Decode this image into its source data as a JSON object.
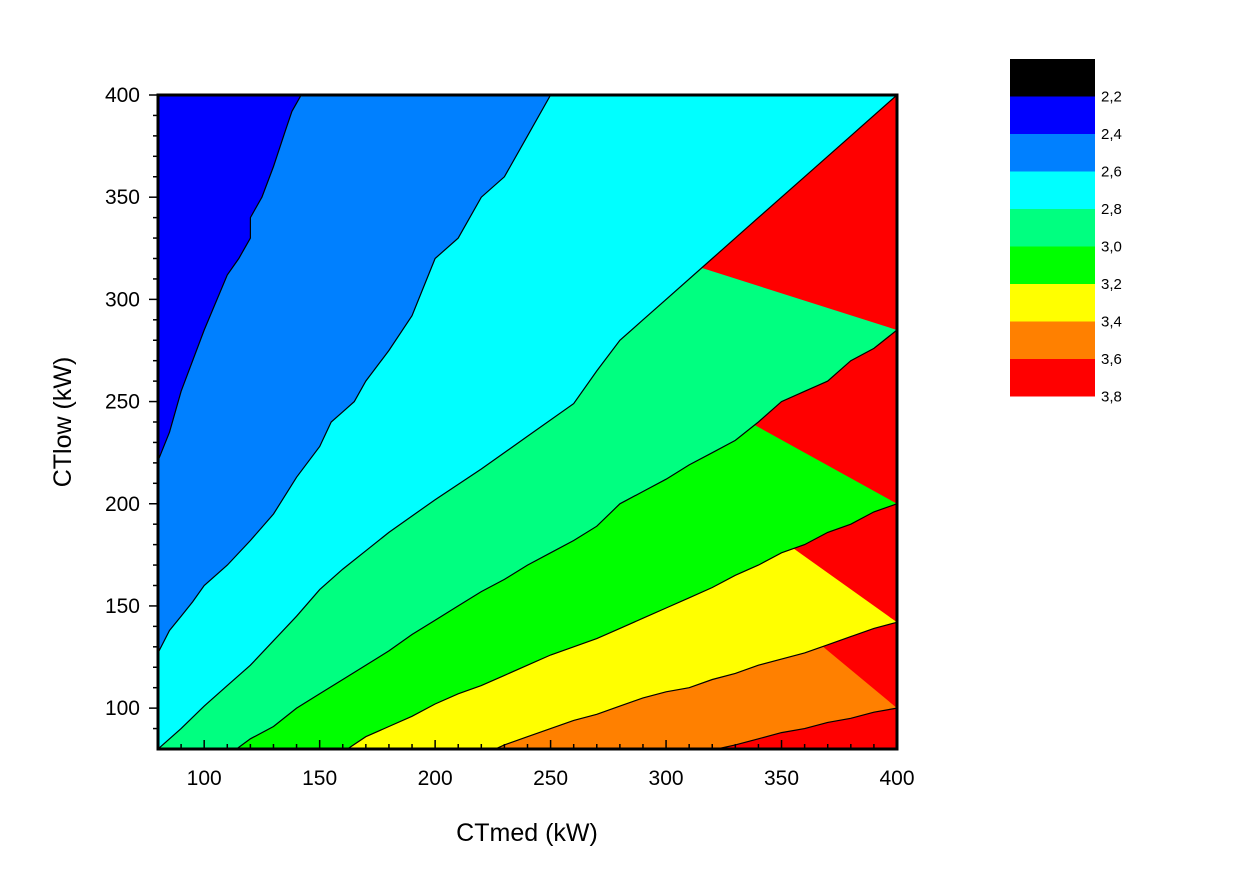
{
  "chart_data": {
    "type": "contour",
    "xlabel": "CTmed (kW)",
    "ylabel": "CTlow (kW)",
    "xlim": [
      80,
      400
    ],
    "ylim": [
      80,
      400
    ],
    "x_ticks": [
      100,
      150,
      200,
      250,
      300,
      350,
      400
    ],
    "y_ticks": [
      100,
      150,
      200,
      250,
      300,
      350,
      400
    ],
    "x_tick_labels": [
      "100",
      "150",
      "200",
      "250",
      "300",
      "350",
      "400"
    ],
    "y_tick_labels": [
      "100",
      "150",
      "200",
      "250",
      "300",
      "350",
      "400"
    ],
    "grid": false,
    "legend_position": "right",
    "levels": [
      {
        "label": "",
        "color": "#000000"
      },
      {
        "label": "2,2",
        "color": "#0000ff"
      },
      {
        "label": "2,4",
        "color": "#0080ff"
      },
      {
        "label": "2,6",
        "color": "#00ffff"
      },
      {
        "label": "2,8",
        "color": "#00ff80"
      },
      {
        "label": "3,0",
        "color": "#00ff00"
      },
      {
        "label": "3,2",
        "color": "#ffff00"
      },
      {
        "label": "3,4",
        "color": "#ff8000"
      },
      {
        "label": "3,6",
        "color": "#ff0000"
      },
      {
        "label": "3,8",
        "color": ""
      }
    ],
    "contours": [
      {
        "level": "2,2/2,4",
        "points": [
          [
            80,
            221
          ],
          [
            85,
            235
          ],
          [
            90,
            255
          ],
          [
            100,
            285
          ],
          [
            110,
            312
          ],
          [
            115,
            320
          ],
          [
            120,
            330
          ],
          [
            120,
            340
          ],
          [
            125,
            350
          ],
          [
            130,
            365
          ],
          [
            135,
            382
          ],
          [
            138,
            392
          ],
          [
            142,
            400
          ]
        ]
      },
      {
        "level": "2,4/2,6",
        "points": [
          [
            80,
            127
          ],
          [
            85,
            138
          ],
          [
            90,
            145
          ],
          [
            95,
            152
          ],
          [
            100,
            160
          ],
          [
            110,
            170
          ],
          [
            120,
            182
          ],
          [
            130,
            195
          ],
          [
            140,
            213
          ],
          [
            150,
            228
          ],
          [
            155,
            240
          ],
          [
            160,
            245
          ],
          [
            165,
            250
          ],
          [
            170,
            260
          ],
          [
            180,
            275
          ],
          [
            190,
            292
          ],
          [
            200,
            320
          ],
          [
            210,
            330
          ],
          [
            220,
            350
          ],
          [
            230,
            360
          ],
          [
            240,
            380
          ],
          [
            250,
            400
          ]
        ]
      },
      {
        "level": "2,6/2,8",
        "points": [
          [
            80,
            80
          ],
          [
            90,
            90
          ],
          [
            100,
            101
          ],
          [
            110,
            111
          ],
          [
            120,
            121
          ],
          [
            130,
            133
          ],
          [
            140,
            145
          ],
          [
            150,
            158
          ],
          [
            160,
            168
          ],
          [
            170,
            177
          ],
          [
            180,
            186
          ],
          [
            200,
            202
          ],
          [
            220,
            217
          ],
          [
            240,
            233
          ],
          [
            260,
            249
          ],
          [
            270,
            265
          ],
          [
            280,
            280
          ],
          [
            290,
            290
          ],
          [
            300,
            300
          ],
          [
            320,
            320
          ],
          [
            340,
            340
          ],
          [
            360,
            360
          ],
          [
            380,
            380
          ],
          [
            400,
            400
          ]
        ]
      },
      {
        "level": "2,8/3,0",
        "points": [
          [
            114,
            80
          ],
          [
            120,
            85
          ],
          [
            130,
            91
          ],
          [
            140,
            100
          ],
          [
            150,
            107
          ],
          [
            160,
            114
          ],
          [
            170,
            121
          ],
          [
            180,
            128
          ],
          [
            190,
            136
          ],
          [
            200,
            143
          ],
          [
            210,
            150
          ],
          [
            220,
            157
          ],
          [
            230,
            163
          ],
          [
            240,
            170
          ],
          [
            250,
            176
          ],
          [
            260,
            182
          ],
          [
            270,
            189
          ],
          [
            280,
            200
          ],
          [
            290,
            206
          ],
          [
            300,
            212
          ],
          [
            310,
            219
          ],
          [
            320,
            225
          ],
          [
            330,
            231
          ],
          [
            340,
            240
          ],
          [
            350,
            250
          ],
          [
            360,
            255
          ],
          [
            370,
            260
          ],
          [
            380,
            270
          ],
          [
            390,
            276
          ],
          [
            400,
            285
          ]
        ]
      },
      {
        "level": "3,0/3,2",
        "points": [
          [
            162,
            80
          ],
          [
            170,
            86
          ],
          [
            180,
            91
          ],
          [
            190,
            96
          ],
          [
            200,
            102
          ],
          [
            210,
            107
          ],
          [
            220,
            111
          ],
          [
            230,
            116
          ],
          [
            240,
            121
          ],
          [
            250,
            126
          ],
          [
            260,
            130
          ],
          [
            270,
            134
          ],
          [
            280,
            139
          ],
          [
            290,
            144
          ],
          [
            300,
            149
          ],
          [
            310,
            154
          ],
          [
            320,
            159
          ],
          [
            330,
            165
          ],
          [
            340,
            170
          ],
          [
            350,
            176
          ],
          [
            360,
            180
          ],
          [
            370,
            186
          ],
          [
            380,
            190
          ],
          [
            390,
            196
          ],
          [
            400,
            200
          ]
        ]
      },
      {
        "level": "3,2/3,4",
        "points": [
          [
            226,
            80
          ],
          [
            230,
            82
          ],
          [
            240,
            86
          ],
          [
            250,
            90
          ],
          [
            260,
            94
          ],
          [
            270,
            97
          ],
          [
            280,
            101
          ],
          [
            290,
            105
          ],
          [
            300,
            108
          ],
          [
            310,
            110
          ],
          [
            320,
            114
          ],
          [
            330,
            117
          ],
          [
            340,
            121
          ],
          [
            350,
            124
          ],
          [
            360,
            127
          ],
          [
            370,
            131
          ],
          [
            380,
            135
          ],
          [
            390,
            139
          ],
          [
            400,
            142
          ]
        ]
      },
      {
        "level": "3,4/3,6",
        "points": [
          [
            322,
            80
          ],
          [
            330,
            82
          ],
          [
            340,
            85
          ],
          [
            350,
            88
          ],
          [
            360,
            90
          ],
          [
            370,
            93
          ],
          [
            380,
            95
          ],
          [
            390,
            98
          ],
          [
            400,
            100
          ]
        ]
      }
    ]
  }
}
